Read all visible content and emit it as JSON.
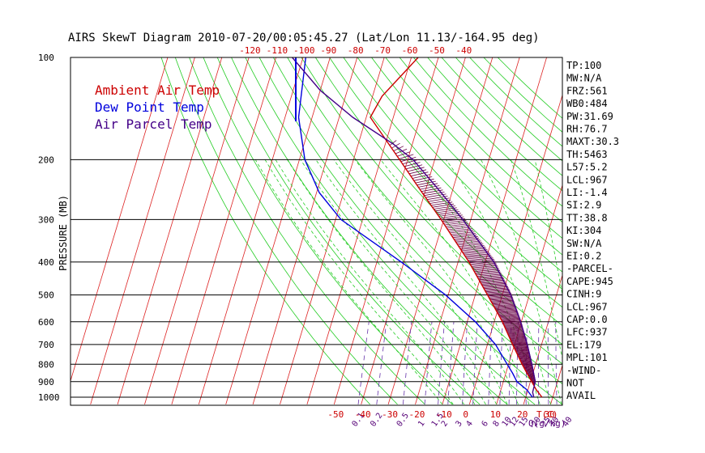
{
  "chart_data": {
    "type": "skewt",
    "title": "AIRS SkewT Diagram 2010-07-20/00:05:45.27 (Lat/Lon 11.13/-164.95 deg)",
    "ylabel": "PRESSURE (MB)",
    "pressure_range": [
      1000,
      100
    ],
    "pressure_ticks": [
      1000,
      900,
      800,
      700,
      600,
      500,
      400,
      300,
      200,
      100
    ],
    "bottom_temp_ticks": [
      -50,
      -40,
      -30,
      -20,
      -10,
      0,
      10,
      20,
      30
    ],
    "bottom_axis_label": "T(C)",
    "top_temp_ticks": [
      -120,
      -110,
      -100,
      -90,
      -80,
      -70,
      -60,
      -50,
      -40
    ],
    "mixing_ratio_ticks": [
      "0.1",
      "0.2",
      "0.5",
      "1",
      "1.5",
      "2",
      "3",
      "4",
      "6",
      "8",
      "10",
      "12",
      "15",
      "20",
      "25",
      "30",
      "40"
    ],
    "mixing_ratio_label": "Q(g/kg)",
    "legend": [
      {
        "label": "Ambient Air Temp",
        "color": "#cc0000"
      },
      {
        "label": "Dew Point Temp",
        "color": "#0000dd"
      },
      {
        "label": "Air Parcel Temp",
        "color": "#440088"
      }
    ],
    "series": [
      {
        "name": "Ambient Air Temp",
        "color": "#cc0000",
        "points": [
          [
            1000,
            26
          ],
          [
            950,
            23
          ],
          [
            900,
            20.5
          ],
          [
            850,
            17.8
          ],
          [
            800,
            15
          ],
          [
            700,
            9.3
          ],
          [
            600,
            3
          ],
          [
            500,
            -5.5
          ],
          [
            400,
            -16
          ],
          [
            300,
            -31
          ],
          [
            250,
            -41
          ],
          [
            200,
            -53
          ],
          [
            150,
            -68.5
          ],
          [
            130,
            -66.5
          ],
          [
            100,
            -57.5
          ]
        ]
      },
      {
        "name": "Dew Point Temp",
        "color": "#0000dd",
        "points": [
          [
            1000,
            22.5
          ],
          [
            950,
            19.5
          ],
          [
            900,
            15
          ],
          [
            850,
            12.5
          ],
          [
            800,
            9.5
          ],
          [
            700,
            3
          ],
          [
            600,
            -7
          ],
          [
            500,
            -21
          ],
          [
            400,
            -41
          ],
          [
            300,
            -68
          ],
          [
            250,
            -79
          ],
          [
            200,
            -88
          ],
          [
            150,
            -95
          ],
          [
            100,
            -99
          ]
        ]
      },
      {
        "name": "Air Parcel Temp",
        "color": "#440088",
        "points": [
          [
            1000,
            23
          ],
          [
            967,
            22
          ],
          [
            900,
            21.8
          ],
          [
            800,
            18.6
          ],
          [
            700,
            14.7
          ],
          [
            600,
            9.7
          ],
          [
            500,
            3.1
          ],
          [
            400,
            -6.8
          ],
          [
            300,
            -23
          ],
          [
            250,
            -34
          ],
          [
            200,
            -48
          ],
          [
            180,
            -57
          ],
          [
            150,
            -75
          ],
          [
            125,
            -90
          ],
          [
            100,
            -104
          ]
        ]
      }
    ],
    "indices": [
      "TP:100",
      "MW:N/A",
      "FRZ:561",
      "WB0:484",
      "PW:31.69",
      "RH:76.7",
      "MAXT:30.3",
      "TH:5463",
      "L57:5.2",
      "LCL:967",
      "LI:-1.4",
      "SI:2.9",
      "TT:38.8",
      "KI:304",
      "SW:N/A",
      "EI:0.2",
      "-PARCEL-",
      "CAPE:945",
      "CINH:9",
      "LCL:967",
      "CAP:0.0",
      "LFC:937",
      "EL:179",
      "MPL:101",
      "-WIND-",
      "NOT",
      "AVAIL"
    ]
  }
}
